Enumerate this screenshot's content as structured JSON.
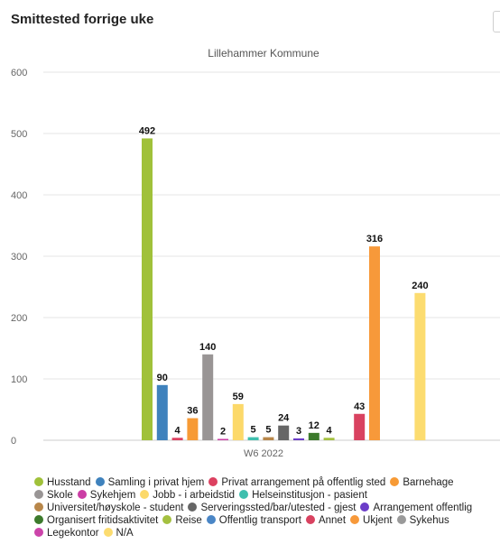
{
  "header": {
    "title": "Smittested forrige uke"
  },
  "chart_data": {
    "type": "bar",
    "title": "Lillehammer Kommune",
    "categories": [
      "W6 2022"
    ],
    "xlabel": "",
    "ylabel": "",
    "ylim": [
      0,
      600
    ],
    "yticks": [
      0,
      100,
      200,
      300,
      400,
      500,
      600
    ],
    "grid": true,
    "legend_position": "bottom",
    "series": [
      {
        "name": "Husstand",
        "values": [
          492
        ],
        "color": "#a0c13a"
      },
      {
        "name": "Samling i privat hjem",
        "values": [
          90
        ],
        "color": "#3f82bd"
      },
      {
        "name": "Privat arrangement på offentlig sted",
        "values": [
          4
        ],
        "color": "#dc4160"
      },
      {
        "name": "Barnehage",
        "values": [
          36
        ],
        "color": "#f79a35"
      },
      {
        "name": "Skole",
        "values": [
          140
        ],
        "color": "#999595"
      },
      {
        "name": "Sykehjem",
        "values": [
          2
        ],
        "color": "#cb3ea5"
      },
      {
        "name": "Jobb - i arbeidstid",
        "values": [
          59
        ],
        "color": "#fcd96a"
      },
      {
        "name": "Helseinstitusjon - pasient",
        "values": [
          5
        ],
        "color": "#3fbfae"
      },
      {
        "name": "Universitet/høyskole - student",
        "values": [
          5
        ],
        "color": "#b8874a"
      },
      {
        "name": "Serveringssted/bar/utested - gjest",
        "values": [
          24
        ],
        "color": "#666666"
      },
      {
        "name": "Arrangement offentlig",
        "values": [
          3
        ],
        "color": "#6b3dc8"
      },
      {
        "name": "Organisert fritidsaktivitet",
        "values": [
          12
        ],
        "color": "#3c7a2c"
      },
      {
        "name": "Reise",
        "values": [
          4
        ],
        "color": "#a4c040"
      },
      {
        "name": "Offentlig transport",
        "values": [
          null
        ],
        "color": "#4a86c6"
      },
      {
        "name": "Annet",
        "values": [
          43
        ],
        "color": "#d94260"
      },
      {
        "name": "Ukjent",
        "values": [
          316
        ],
        "color": "#f7993a"
      },
      {
        "name": "Sykehus",
        "values": [
          null
        ],
        "color": "#9a9a9a"
      },
      {
        "name": "Legekontor",
        "values": [
          null
        ],
        "color": "#cc44aa"
      },
      {
        "name": "N/A",
        "values": [
          240
        ],
        "color": "#fcdc70"
      }
    ]
  }
}
